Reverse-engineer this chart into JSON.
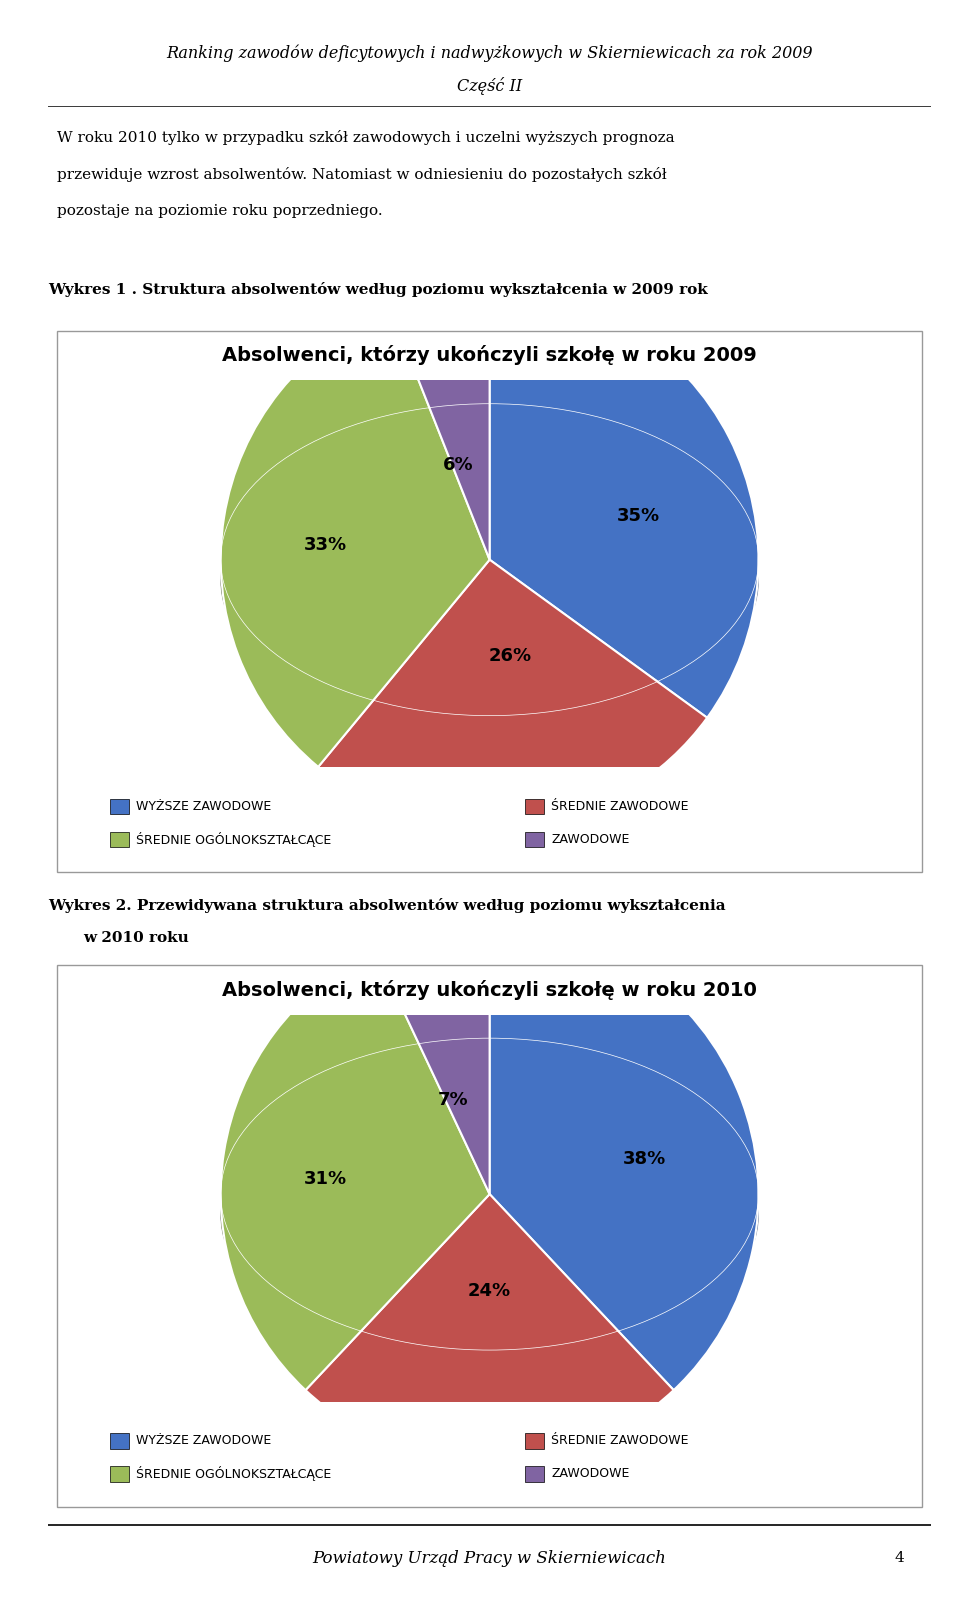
{
  "page_title_line1": "Ranking zawodów deficytowych i nadwyżkowych w Skierniewicach za rok 2009",
  "page_title_line2": "Część II",
  "body_text_line1": "W roku 2010 tylko w przypadku szkół zawodowych i uczelni wyższych prognoza",
  "body_text_line2": "przewiduje wzrost absolwentów. Natomiast w odniesieniu do pozostałych szkół",
  "body_text_line3": "pozostaje na poziomie roku poprzedniego.",
  "wykres1_label": "Wykres 1 . Struktura absolwentów według poziomu wykształcenia w 2009 rok",
  "chart1_title": "Absolwenci, którzy ukończyli szkołę w roku 2009",
  "chart1_values": [
    35,
    26,
    33,
    6
  ],
  "chart1_labels": [
    "35%",
    "26%",
    "33%",
    "6%"
  ],
  "wykres2_label_line1": "Wykres 2. Przewidywana struktura absolwentów według poziomu wykształcenia",
  "wykres2_label_line2": "w 2010 roku",
  "chart2_title": "Absolwenci, którzy ukończyli szkołę w roku 2010",
  "chart2_values": [
    38,
    24,
    31,
    7
  ],
  "chart2_labels": [
    "38%",
    "24%",
    "31%",
    "7%"
  ],
  "colors": [
    "#4472C4",
    "#C0504D",
    "#9BBB59",
    "#8064A2"
  ],
  "colors_dark": [
    "#2F5496",
    "#922B2A",
    "#4F6228",
    "#5B3F8A"
  ],
  "legend_labels": [
    "WYŻSZE ZAWODOWE",
    "ŚREDNIE ZAWODOWE",
    "ŚREDNIE OGÓLNOKSZTAŁCĄCE",
    "ZAWODOWE"
  ],
  "footer_text": "Powiatowy Urząd Pracy w Skierniewicach",
  "page_num": "4",
  "background_color": "#FFFFFF"
}
